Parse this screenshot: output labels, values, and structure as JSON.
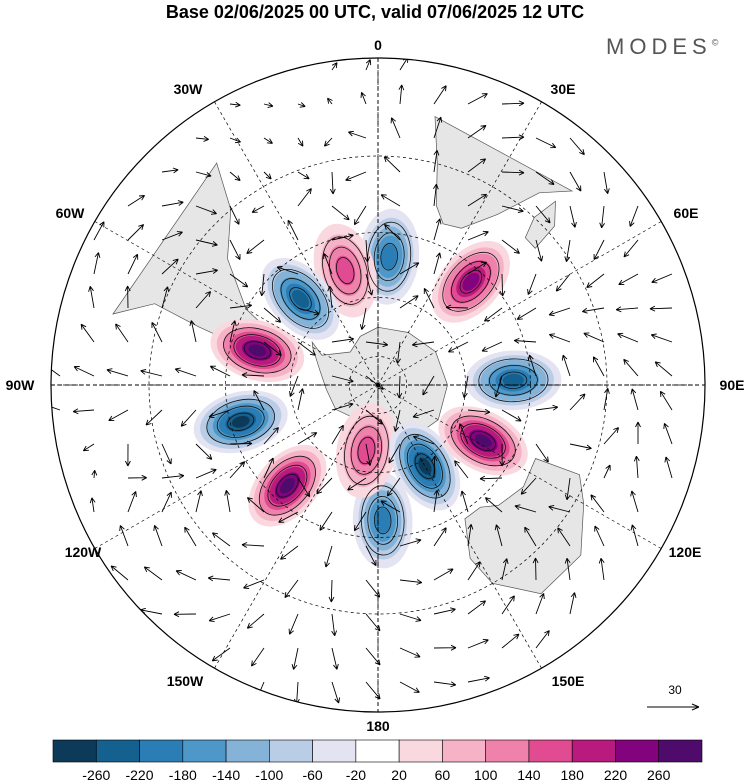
{
  "title": "Base 02/06/2025 00 UTC, valid 07/06/2025 12 UTC",
  "brand": "MODES",
  "brand_mark": "©",
  "projection": "south-polar-stereographic",
  "longitude_labels": [
    {
      "id": "0",
      "text": "0",
      "lon": 0
    },
    {
      "id": "30e",
      "text": "30E",
      "lon": 30
    },
    {
      "id": "60e",
      "text": "60E",
      "lon": 60
    },
    {
      "id": "90e",
      "text": "90E",
      "lon": 90
    },
    {
      "id": "120e",
      "text": "120E",
      "lon": 120
    },
    {
      "id": "150e",
      "text": "150E",
      "lon": 150
    },
    {
      "id": "180",
      "text": "180",
      "lon": 180
    },
    {
      "id": "150w",
      "text": "150W",
      "lon": -150
    },
    {
      "id": "120w",
      "text": "120W",
      "lon": -120
    },
    {
      "id": "90w",
      "text": "90W",
      "lon": -90
    },
    {
      "id": "60w",
      "text": "60W",
      "lon": -60
    },
    {
      "id": "30w",
      "text": "30W",
      "lon": -30
    }
  ],
  "vector_reference": {
    "value": "30"
  },
  "colorbar": {
    "ticks": [
      "-260",
      "-220",
      "-180",
      "-140",
      "-100",
      "-60",
      "-20",
      "20",
      "60",
      "100",
      "140",
      "180",
      "220",
      "260"
    ],
    "colors": [
      "#0e3a5a",
      "#14608f",
      "#2b7db6",
      "#4d98c8",
      "#85b3d8",
      "#b9cde7",
      "#e3e3f1",
      "#ffffff",
      "#fad8df",
      "#f6b2c6",
      "#ef82ab",
      "#e04b91",
      "#b81b7d",
      "#82037d",
      "#4f0b6b"
    ]
  },
  "anomaly_centers": [
    {
      "name": "neg-0E",
      "lon": 5,
      "lat": -47,
      "sign": -1,
      "mag": 180
    },
    {
      "name": "pos-20W",
      "lon": -16,
      "lat": -50,
      "sign": 1,
      "mag": 170
    },
    {
      "name": "neg-40W",
      "lon": -42,
      "lat": -51,
      "sign": -1,
      "mag": 240
    },
    {
      "name": "pos-70W",
      "lon": -74,
      "lat": -48,
      "sign": 1,
      "mag": 280
    },
    {
      "name": "neg-105W",
      "lon": -105,
      "lat": -43,
      "sign": -1,
      "mag": 260
    },
    {
      "name": "pos-140W",
      "lon": -138,
      "lat": -45,
      "sign": 1,
      "mag": 260
    },
    {
      "name": "neg-170E",
      "lon": 178,
      "lat": -45,
      "sign": -1,
      "mag": 200
    },
    {
      "name": "pos-165W",
      "lon": -170,
      "lat": -67,
      "sign": 1,
      "mag": 150
    },
    {
      "name": "neg-140E",
      "lon": 150,
      "lat": -58,
      "sign": -1,
      "mag": 260
    },
    {
      "name": "pos-115E",
      "lon": 118,
      "lat": -50,
      "sign": 1,
      "mag": 270
    },
    {
      "name": "neg-85E",
      "lon": 88,
      "lat": -45,
      "sign": -1,
      "mag": 250
    },
    {
      "name": "pos-45E",
      "lon": 42,
      "lat": -44,
      "sign": 1,
      "mag": 220
    }
  ]
}
